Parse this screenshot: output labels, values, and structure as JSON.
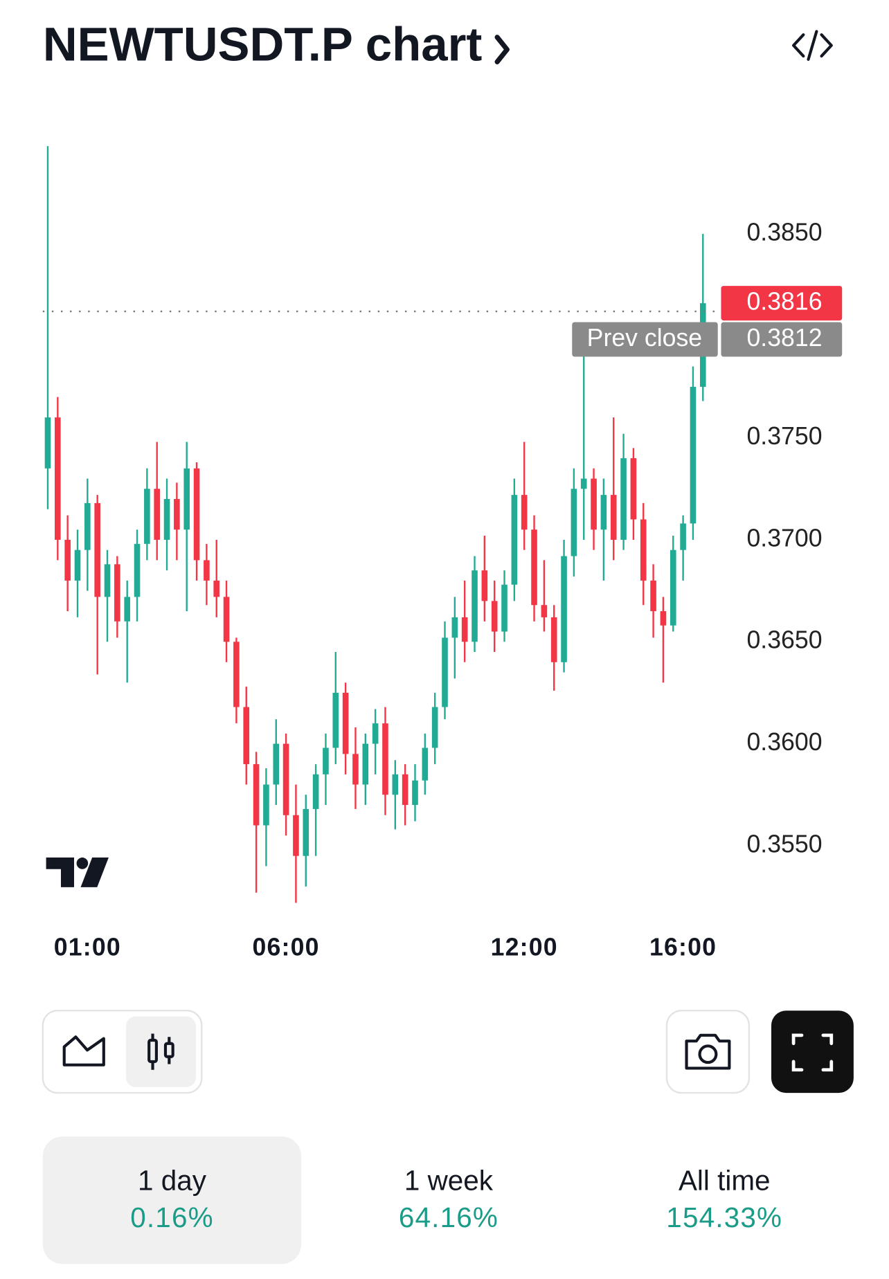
{
  "header": {
    "title": "NEWTUSDT.P chart"
  },
  "chart_data": {
    "type": "candlestick",
    "categories": [
      null,
      null,
      null,
      null,
      "01:00",
      null,
      null,
      null,
      null,
      null,
      null,
      null,
      null,
      null,
      null,
      null,
      null,
      null,
      null,
      null,
      null,
      null,
      null,
      null,
      "06:00",
      null,
      null,
      null,
      null,
      null,
      null,
      null,
      null,
      null,
      null,
      null,
      null,
      null,
      null,
      null,
      null,
      null,
      null,
      null,
      null,
      null,
      null,
      null,
      "12:00",
      null,
      null,
      null,
      null,
      null,
      null,
      null,
      null,
      null,
      null,
      null,
      null,
      null,
      null,
      null,
      "16:00",
      null,
      null
    ],
    "open": [
      0.3735,
      0.376,
      0.37,
      0.368,
      0.3695,
      0.3718,
      0.3672,
      0.3688,
      0.366,
      0.3672,
      0.3698,
      0.3725,
      0.37,
      0.372,
      0.3705,
      0.3735,
      0.369,
      0.368,
      0.3672,
      0.365,
      0.3618,
      0.359,
      0.356,
      0.358,
      0.36,
      0.3565,
      0.3545,
      0.3568,
      0.3585,
      0.3598,
      0.3625,
      0.3595,
      0.358,
      0.36,
      0.361,
      0.3575,
      0.3585,
      0.357,
      0.3582,
      0.3598,
      0.3618,
      0.3652,
      0.3662,
      0.365,
      0.3685,
      0.367,
      0.3655,
      0.3678,
      0.3722,
      0.3705,
      0.3668,
      0.3662,
      0.364,
      0.3692,
      0.3725,
      0.373,
      0.3705,
      0.3722,
      0.37,
      0.374,
      0.371,
      0.368,
      0.3665,
      0.3658,
      0.3695,
      0.3708,
      0.3775
    ],
    "high": [
      0.3893,
      0.377,
      0.3712,
      0.3705,
      0.373,
      0.3722,
      0.3695,
      0.3692,
      0.368,
      0.3705,
      0.3735,
      0.3748,
      0.373,
      0.3728,
      0.3748,
      0.3738,
      0.3698,
      0.37,
      0.368,
      0.3652,
      0.3628,
      0.3596,
      0.3588,
      0.3612,
      0.3605,
      0.358,
      0.3575,
      0.359,
      0.3605,
      0.3645,
      0.363,
      0.3608,
      0.3605,
      0.3617,
      0.3618,
      0.3592,
      0.359,
      0.359,
      0.3605,
      0.3625,
      0.366,
      0.3672,
      0.368,
      0.3692,
      0.3702,
      0.368,
      0.3685,
      0.373,
      0.3748,
      0.3712,
      0.369,
      0.3668,
      0.37,
      0.3735,
      0.3799,
      0.3735,
      0.373,
      0.376,
      0.3752,
      0.3745,
      0.3718,
      0.3688,
      0.3672,
      0.3702,
      0.3712,
      0.3785,
      0.385
    ],
    "low": [
      0.3715,
      0.369,
      0.3665,
      0.3662,
      0.3675,
      0.3634,
      0.365,
      0.3652,
      0.363,
      0.366,
      0.369,
      0.369,
      0.3685,
      0.369,
      0.3665,
      0.368,
      0.3668,
      0.3662,
      0.364,
      0.361,
      0.358,
      0.3527,
      0.354,
      0.357,
      0.3555,
      0.3522,
      0.353,
      0.3545,
      0.357,
      0.359,
      0.3585,
      0.3568,
      0.357,
      0.3585,
      0.3565,
      0.3558,
      0.356,
      0.3562,
      0.3575,
      0.359,
      0.3612,
      0.3632,
      0.364,
      0.3645,
      0.366,
      0.3645,
      0.365,
      0.367,
      0.3695,
      0.366,
      0.3655,
      0.3626,
      0.3635,
      0.3682,
      0.37,
      0.3695,
      0.368,
      0.369,
      0.3695,
      0.37,
      0.3668,
      0.3652,
      0.363,
      0.3655,
      0.368,
      0.37,
      0.3768
    ],
    "close": [
      0.376,
      0.37,
      0.368,
      0.3695,
      0.3718,
      0.3672,
      0.3688,
      0.366,
      0.3672,
      0.3698,
      0.3725,
      0.37,
      0.372,
      0.3705,
      0.3735,
      0.369,
      0.368,
      0.3672,
      0.365,
      0.3618,
      0.359,
      0.356,
      0.358,
      0.36,
      0.3565,
      0.3545,
      0.3568,
      0.3585,
      0.3598,
      0.3625,
      0.3595,
      0.358,
      0.36,
      0.361,
      0.3575,
      0.3585,
      0.357,
      0.3582,
      0.3598,
      0.3618,
      0.3652,
      0.3662,
      0.365,
      0.3685,
      0.367,
      0.3655,
      0.3678,
      0.3722,
      0.3705,
      0.3668,
      0.3662,
      0.364,
      0.3692,
      0.3725,
      0.373,
      0.3705,
      0.3722,
      0.37,
      0.374,
      0.371,
      0.368,
      0.3665,
      0.3658,
      0.3695,
      0.3708,
      0.3775,
      0.3816
    ],
    "up_color": "#22ab94",
    "down_color": "#f23645",
    "ylim": [
      0.352,
      0.3896
    ],
    "yticks": [
      {
        "value": 0.355,
        "label": "0.3550"
      },
      {
        "value": 0.36,
        "label": "0.3600"
      },
      {
        "value": 0.365,
        "label": "0.3650"
      },
      {
        "value": 0.37,
        "label": "0.3700"
      },
      {
        "value": 0.375,
        "label": "0.3750"
      },
      {
        "value": 0.385,
        "label": "0.3850"
      }
    ],
    "last_price_label": "0.3816",
    "prev_close": 0.3812,
    "prev_close_label": "0.3812",
    "prev_close_title": "Prev close"
  },
  "periods": [
    {
      "label": "1 day",
      "change": "0.16%"
    },
    {
      "label": "1 week",
      "change": "64.16%"
    },
    {
      "label": "All time",
      "change": "154.33%"
    }
  ]
}
